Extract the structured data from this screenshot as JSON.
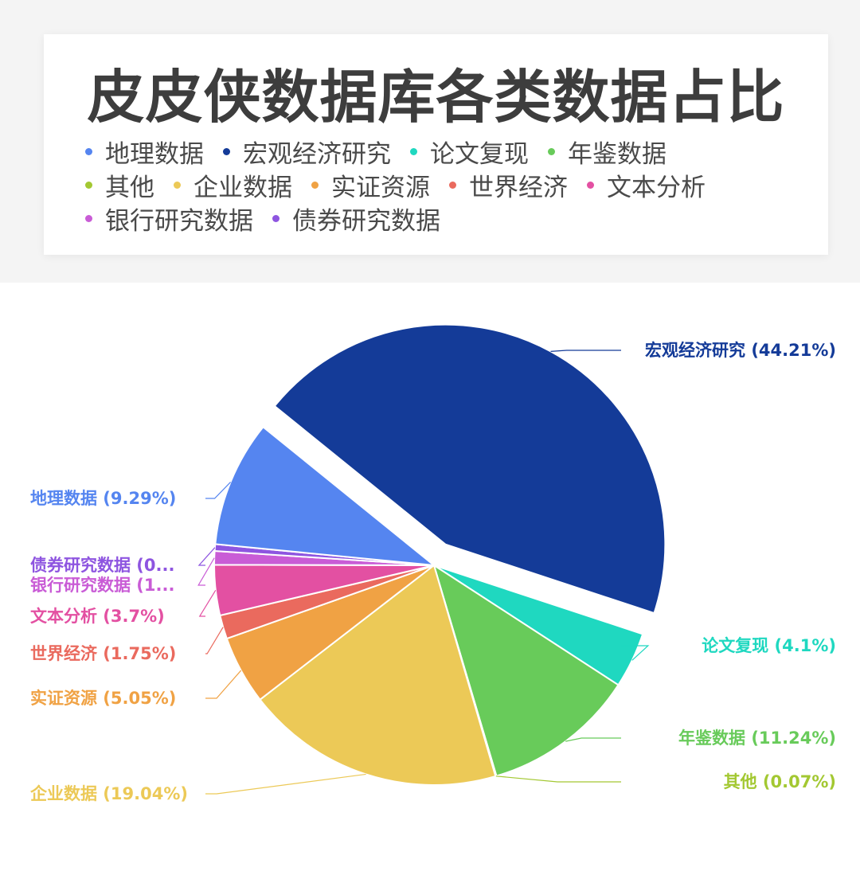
{
  "chart_data": {
    "type": "pie",
    "title": "皮皮侠数据库各类数据占比",
    "legend_rows": [
      [
        0,
        1,
        2,
        3
      ],
      [
        4,
        5,
        6,
        7,
        8
      ],
      [
        9,
        10
      ]
    ],
    "slices": [
      {
        "name": "地理数据",
        "value": 9.29,
        "label": "地理数据 (9.29%)",
        "color": "#5585f0"
      },
      {
        "name": "宏观经济研究",
        "value": 44.21,
        "label": "宏观经济研究 (44.21%)",
        "color": "#143b98"
      },
      {
        "name": "论文复现",
        "value": 4.1,
        "label": "论文复现 (4.1%)",
        "color": "#1fd8c0"
      },
      {
        "name": "年鉴数据",
        "value": 11.24,
        "label": "年鉴数据 (11.24%)",
        "color": "#68cb5a"
      },
      {
        "name": "其他",
        "value": 0.07,
        "label": "其他 (0.07%)",
        "color": "#a3c832"
      },
      {
        "name": "企业数据",
        "value": 19.04,
        "label": "企业数据 (19.04%)",
        "color": "#ecc957"
      },
      {
        "name": "实证资源",
        "value": 5.05,
        "label": "实证资源 (5.05%)",
        "color": "#f0a244"
      },
      {
        "name": "世界经济",
        "value": 1.75,
        "label": "世界经济 (1.75%)",
        "color": "#ea6a5e"
      },
      {
        "name": "文本分析",
        "value": 3.7,
        "label": "文本分析 (3.7%)",
        "color": "#e350a2"
      },
      {
        "name": "银行研究数据",
        "value": 1.0,
        "label": "银行研究数据 (1...",
        "color": "#c95cd6"
      },
      {
        "name": "债券研究数据",
        "value": 0.5,
        "label": "债券研究数据 (0...",
        "color": "#8e55e0"
      }
    ]
  }
}
